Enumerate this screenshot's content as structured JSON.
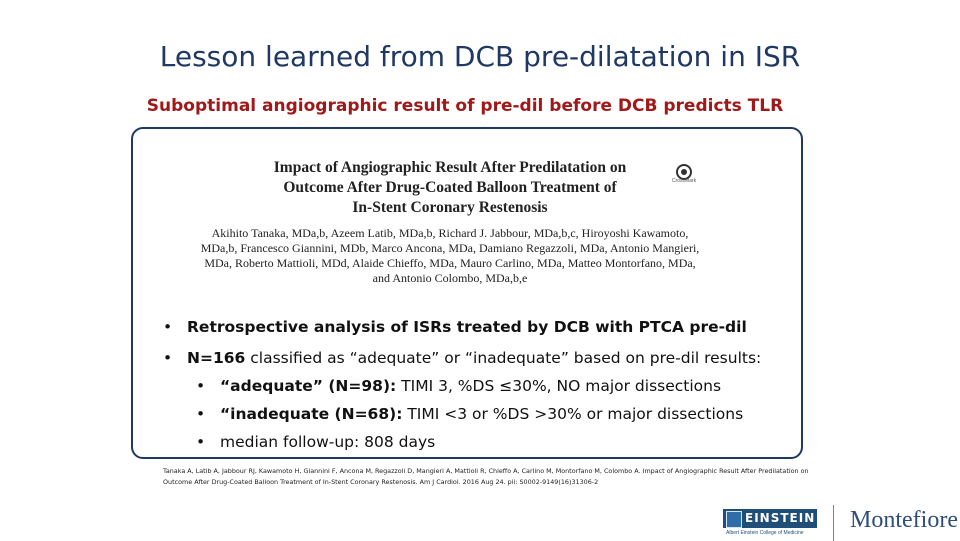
{
  "slide": {
    "title": "Lesson learned from DCB pre-dilatation in ISR",
    "subtitle": "Suboptimal angiographic result of pre-dil before DCB predicts TLR"
  },
  "paper": {
    "title": "Impact of Angiographic Result After Predilatation on\nOutcome After Drug-Coated Balloon Treatment of\nIn-Stent Coronary Restenosis",
    "authors": "Akihito Tanaka, MDa,b, Azeem Latib, MDa,b, Richard J. Jabbour, MDa,b,c, Hiroyoshi Kawamoto, MDa,b, Francesco Giannini, MDb, Marco Ancona, MDa, Damiano Regazzoli, MDa, Antonio Mangieri, MDa, Roberto Mattioli, MDd, Alaide Chieffo, MDa, Mauro Carlino, MDa, Matteo Montorfano, MDa, and Antonio Colombo, MDa,b,e",
    "crossmark_label": "CrossMark"
  },
  "bullets": {
    "b1": "Retrospective analysis of ISRs treated by DCB with PTCA pre-dil",
    "b2_bold": "N=166",
    "b2_rest": " classified as “adequate” or “inadequate” based on pre-dil results:",
    "b3_bold": "“adequate” (N=98):",
    "b3_rest": " TIMI 3, %DS ≤30%, NO major dissections",
    "b4_bold": "“inadequate (N=68):",
    "b4_rest": " TIMI <3 or %DS >30% or major dissections",
    "b5": "median follow-up: 808 days",
    "marker": "•"
  },
  "citation": "Tanaka A, Latib A, Jabbour RJ, Kawamoto H, Giannini F, Ancona M, Regazzoli D, Mangieri A, Mattioli R, Chieffo A, Carlino M, Montorfano M, Colombo A. Impact of Angiographic Result After Predilatation on Outcome After Drug-Coated Balloon Treatment of In-Stent Coronary Restenosis. Am J Cardiol. 2016 Aug 24. pii: S0002-9149(16)31306-2",
  "logos": {
    "einstein": "EINSTEIN",
    "einstein_sub": "Albert Einstein College of Medicine",
    "montefiore": "Montefiore"
  },
  "colors": {
    "title": "#1f3864",
    "subtitle": "#a01818",
    "panel_border": "#1f3864"
  }
}
